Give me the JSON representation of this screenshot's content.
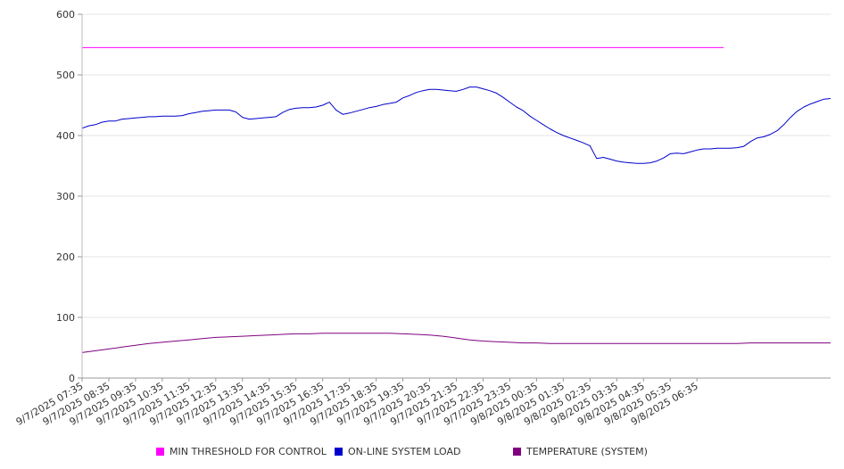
{
  "chart_data": {
    "type": "line",
    "title": "",
    "xlabel": "",
    "ylabel": "",
    "ylim": [
      0,
      600
    ],
    "y_ticks": [
      0,
      100,
      200,
      300,
      400,
      500,
      600
    ],
    "grid": "horizontal",
    "legend_position": "bottom",
    "categories": [
      "9/7/2025 07:35",
      "9/7/2025 08:35",
      "9/7/2025 09:35",
      "9/7/2025 10:35",
      "9/7/2025 11:35",
      "9/7/2025 12:35",
      "9/7/2025 13:35",
      "9/7/2025 14:35",
      "9/7/2025 15:35",
      "9/7/2025 16:35",
      "9/7/2025 17:35",
      "9/7/2025 18:35",
      "9/7/2025 19:35",
      "9/7/2025 20:35",
      "9/7/2025 21:35",
      "9/7/2025 22:35",
      "9/7/2025 23:35",
      "9/8/2025 00:35",
      "9/8/2025 01:35",
      "9/8/2025 02:35",
      "9/8/2025 03:35",
      "9/8/2025 04:35",
      "9/8/2025 05:35",
      "9/8/2025 06:35"
    ],
    "series": [
      {
        "name": "MIN THRESHOLD FOR CONTROL",
        "color": "#ff00ff",
        "points": [
          [
            0,
            545
          ],
          [
            24,
            545
          ]
        ]
      },
      {
        "name": "ON-LINE SYSTEM LOAD",
        "color": "#0000cc",
        "points": [
          [
            0,
            412
          ],
          [
            0.25,
            416
          ],
          [
            0.5,
            418
          ],
          [
            0.75,
            422
          ],
          [
            1,
            424
          ],
          [
            1.25,
            424
          ],
          [
            1.5,
            427
          ],
          [
            1.75,
            428
          ],
          [
            2,
            429
          ],
          [
            2.25,
            430
          ],
          [
            2.5,
            431
          ],
          [
            2.75,
            431
          ],
          [
            3,
            432
          ],
          [
            3.25,
            432
          ],
          [
            3.5,
            432
          ],
          [
            3.75,
            433
          ],
          [
            4,
            436
          ],
          [
            4.25,
            438
          ],
          [
            4.5,
            440
          ],
          [
            4.75,
            441
          ],
          [
            5,
            442
          ],
          [
            5.25,
            442
          ],
          [
            5.5,
            442
          ],
          [
            5.75,
            439
          ],
          [
            6,
            430
          ],
          [
            6.25,
            427
          ],
          [
            6.5,
            428
          ],
          [
            6.75,
            429
          ],
          [
            7,
            430
          ],
          [
            7.25,
            431
          ],
          [
            7.5,
            438
          ],
          [
            7.75,
            443
          ],
          [
            8,
            445
          ],
          [
            8.25,
            446
          ],
          [
            8.5,
            446
          ],
          [
            8.75,
            447
          ],
          [
            9,
            450
          ],
          [
            9.25,
            455
          ],
          [
            9.5,
            442
          ],
          [
            9.75,
            435
          ],
          [
            10,
            437
          ],
          [
            10.25,
            440
          ],
          [
            10.5,
            443
          ],
          [
            10.75,
            446
          ],
          [
            11,
            448
          ],
          [
            11.25,
            451
          ],
          [
            11.5,
            453
          ],
          [
            11.75,
            455
          ],
          [
            12,
            462
          ],
          [
            12.25,
            466
          ],
          [
            12.5,
            471
          ],
          [
            12.75,
            474
          ],
          [
            13,
            476
          ],
          [
            13.25,
            476
          ],
          [
            13.5,
            475
          ],
          [
            13.75,
            474
          ],
          [
            14,
            473
          ],
          [
            14.25,
            476
          ],
          [
            14.5,
            480
          ],
          [
            14.75,
            480
          ],
          [
            15,
            477
          ],
          [
            15.25,
            474
          ],
          [
            15.5,
            470
          ],
          [
            15.75,
            463
          ],
          [
            16,
            455
          ],
          [
            16.25,
            447
          ],
          [
            16.5,
            441
          ],
          [
            16.75,
            432
          ],
          [
            17,
            425
          ],
          [
            17.25,
            418
          ],
          [
            17.5,
            411
          ],
          [
            17.75,
            405
          ],
          [
            18,
            400
          ],
          [
            18.25,
            396
          ],
          [
            18.5,
            392
          ],
          [
            18.75,
            388
          ],
          [
            19,
            383
          ],
          [
            19.25,
            362
          ],
          [
            19.5,
            364
          ],
          [
            19.75,
            361
          ],
          [
            20,
            358
          ],
          [
            20.25,
            356
          ],
          [
            20.5,
            355
          ],
          [
            20.75,
            354
          ],
          [
            21,
            354
          ],
          [
            21.25,
            355
          ],
          [
            21.5,
            358
          ],
          [
            21.75,
            363
          ],
          [
            22,
            370
          ],
          [
            22.25,
            371
          ],
          [
            22.5,
            370
          ],
          [
            22.75,
            373
          ],
          [
            23,
            376
          ],
          [
            23.25,
            378
          ],
          [
            23.5,
            378
          ],
          [
            23.75,
            379
          ],
          [
            24,
            379
          ],
          [
            24.25,
            379
          ],
          [
            24.5,
            380
          ],
          [
            24.75,
            382
          ],
          [
            25,
            390
          ],
          [
            25.25,
            396
          ],
          [
            25.5,
            398
          ],
          [
            25.75,
            402
          ],
          [
            26,
            408
          ],
          [
            26.25,
            418
          ],
          [
            26.5,
            430
          ],
          [
            26.75,
            440
          ],
          [
            27,
            447
          ],
          [
            27.25,
            452
          ],
          [
            27.5,
            456
          ],
          [
            27.75,
            460
          ],
          [
            28,
            461
          ]
        ]
      },
      {
        "name": "TEMPERATURE (SYSTEM)",
        "color": "#800080",
        "points": [
          [
            0,
            42
          ],
          [
            0.5,
            45
          ],
          [
            1,
            48
          ],
          [
            1.5,
            51
          ],
          [
            2,
            54
          ],
          [
            2.5,
            57
          ],
          [
            3,
            59
          ],
          [
            3.5,
            61
          ],
          [
            4,
            63
          ],
          [
            4.5,
            65
          ],
          [
            5,
            67
          ],
          [
            5.5,
            68
          ],
          [
            6,
            69
          ],
          [
            6.5,
            70
          ],
          [
            7,
            71
          ],
          [
            7.5,
            72
          ],
          [
            8,
            73
          ],
          [
            8.5,
            73
          ],
          [
            9,
            74
          ],
          [
            9.5,
            74
          ],
          [
            10,
            74
          ],
          [
            10.5,
            74
          ],
          [
            11,
            74
          ],
          [
            11.5,
            74
          ],
          [
            12,
            73
          ],
          [
            12.5,
            72
          ],
          [
            13,
            71
          ],
          [
            13.5,
            69
          ],
          [
            14,
            66
          ],
          [
            14.5,
            63
          ],
          [
            15,
            61
          ],
          [
            15.5,
            60
          ],
          [
            16,
            59
          ],
          [
            16.5,
            58
          ],
          [
            17,
            58
          ],
          [
            17.5,
            57
          ],
          [
            18,
            57
          ],
          [
            18.5,
            57
          ],
          [
            19,
            57
          ],
          [
            19.5,
            57
          ],
          [
            20,
            57
          ],
          [
            20.5,
            57
          ],
          [
            21,
            57
          ],
          [
            21.5,
            57
          ],
          [
            22,
            57
          ],
          [
            22.5,
            57
          ],
          [
            23,
            57
          ],
          [
            23.5,
            57
          ],
          [
            24,
            57
          ],
          [
            24.5,
            57
          ],
          [
            25,
            58
          ],
          [
            25.5,
            58
          ],
          [
            26,
            58
          ],
          [
            26.5,
            58
          ],
          [
            27,
            58
          ],
          [
            27.5,
            58
          ],
          [
            28,
            58
          ]
        ]
      }
    ]
  }
}
